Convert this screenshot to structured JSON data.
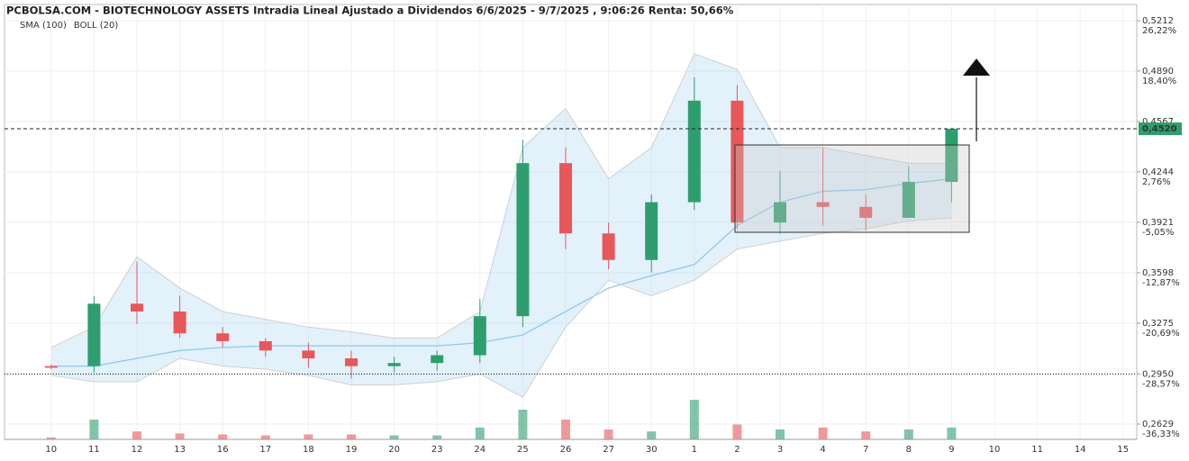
{
  "chart_data": {
    "type": "candlestick",
    "title": "PCBOLSA.COM - BIOTECHNOLOGY ASSETS Intradia Lineal Ajustado a Dividendos 6/6/2025 - 9/7/2025 , 9:06:26 Renta: 50,66%",
    "categories": [
      "10",
      "11",
      "12",
      "13",
      "16",
      "17",
      "18",
      "19",
      "20",
      "23",
      "24",
      "25",
      "26",
      "27",
      "30",
      "1",
      "2",
      "3",
      "4",
      "7",
      "8",
      "9",
      "10",
      "11",
      "14",
      "15"
    ],
    "open": [
      0.3,
      0.3,
      0.34,
      0.335,
      0.321,
      0.316,
      0.31,
      0.305,
      0.3,
      0.302,
      0.307,
      0.332,
      0.43,
      0.385,
      0.368,
      0.405,
      0.47,
      0.392,
      0.405,
      0.402,
      0.395,
      0.418,
      null,
      null,
      null,
      null
    ],
    "high": [
      0.301,
      0.345,
      0.367,
      0.345,
      0.325,
      0.318,
      0.315,
      0.31,
      0.306,
      0.31,
      0.343,
      0.445,
      0.44,
      0.392,
      0.41,
      0.485,
      0.48,
      0.425,
      0.44,
      0.41,
      0.428,
      0.452,
      null,
      null,
      null,
      null
    ],
    "low": [
      0.298,
      0.296,
      0.327,
      0.318,
      0.312,
      0.306,
      0.299,
      0.292,
      0.296,
      0.297,
      0.302,
      0.325,
      0.375,
      0.362,
      0.36,
      0.4,
      0.388,
      0.385,
      0.39,
      0.387,
      0.395,
      0.405,
      null,
      null,
      null,
      null
    ],
    "close": [
      0.299,
      0.34,
      0.335,
      0.321,
      0.316,
      0.31,
      0.305,
      0.3,
      0.302,
      0.307,
      0.332,
      0.43,
      0.385,
      0.368,
      0.405,
      0.47,
      0.392,
      0.405,
      0.402,
      0.395,
      0.418,
      0.452,
      null,
      null,
      null,
      null
    ],
    "volume": [
      2,
      20,
      8,
      6,
      5,
      4,
      5,
      5,
      4,
      4,
      12,
      30,
      20,
      10,
      8,
      40,
      15,
      10,
      12,
      8,
      10,
      12,
      null,
      null,
      null,
      null
    ],
    "up_color": "#2e9e6e",
    "down_color": "#e8575a",
    "series": [
      {
        "name": "SMA (100)",
        "color": "#8ec9ee",
        "values": [
          0.3,
          0.3,
          0.305,
          0.31,
          0.312,
          0.313,
          0.313,
          0.313,
          0.313,
          0.313,
          0.315,
          0.32,
          0.335,
          0.35,
          0.358,
          0.365,
          0.39,
          0.405,
          0.412,
          0.413,
          0.417,
          0.42,
          null,
          null,
          null,
          null
        ]
      },
      {
        "name": "BOLL (20)",
        "color": "#d0d0d0",
        "upper": [
          0.312,
          0.325,
          0.37,
          0.35,
          0.335,
          0.33,
          0.325,
          0.322,
          0.318,
          0.318,
          0.335,
          0.44,
          0.465,
          0.42,
          0.44,
          0.5,
          0.49,
          0.44,
          0.44,
          0.435,
          0.43,
          0.43,
          null,
          null,
          null,
          null
        ],
        "lower": [
          0.294,
          0.29,
          0.29,
          0.305,
          0.3,
          0.298,
          0.294,
          0.288,
          0.288,
          0.29,
          0.295,
          0.28,
          0.325,
          0.355,
          0.345,
          0.355,
          0.375,
          0.38,
          0.385,
          0.388,
          0.393,
          0.395,
          null,
          null,
          null,
          null
        ]
      }
    ],
    "ylim": [
      0.2531,
      0.5316
    ],
    "yticks": [
      {
        "value": 0.2629,
        "label": "0,2629"
      },
      {
        "value": 0.295,
        "label": "0,2950"
      },
      {
        "value": 0.3275,
        "label": "0,3275"
      },
      {
        "value": 0.3598,
        "label": "0,3598"
      },
      {
        "value": 0.3921,
        "label": "0,3921"
      },
      {
        "value": 0.4244,
        "label": "0,4244"
      },
      {
        "value": 0.4567,
        "label": "0,4567"
      },
      {
        "value": 0.489,
        "label": "0,4890"
      },
      {
        "value": 0.5212,
        "label": "0,5212"
      }
    ],
    "y2lim": [
      -38.72,
      28.72
    ],
    "y2ticks": [
      {
        "value": -36.33,
        "label": "-36,33%"
      },
      {
        "value": -28.57,
        "label": "-28,57%"
      },
      {
        "value": -20.69,
        "label": "-20,69%"
      },
      {
        "value": -12.87,
        "label": "-12,87%"
      },
      {
        "value": -5.05,
        "label": "-5,05%"
      },
      {
        "value": 2.76,
        "label": "2,76%"
      },
      {
        "value": 18.4,
        "label": "18,40%"
      },
      {
        "value": 26.22,
        "label": "26,22%"
      }
    ],
    "last_price": {
      "value": 0.452,
      "label": "0,4520"
    },
    "reference_line": 0.295,
    "grid": true
  }
}
